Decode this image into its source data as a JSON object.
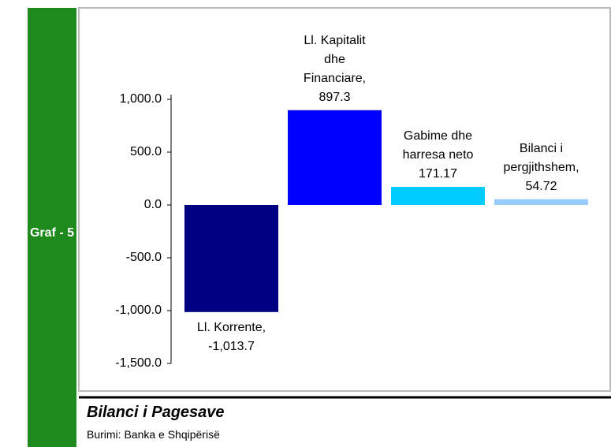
{
  "sidebar_label": "Graf - 5",
  "caption": "Bilanci i Pagesave",
  "source": "Burimi: Banka e Shqipërisë",
  "chart_data": {
    "type": "bar",
    "values": [
      -1013.7,
      897.3,
      171.17,
      54.72
    ],
    "value_labels": [
      "Ll. Korrente, -1,013.7",
      "Ll. Kapitalit dhe Financiare, 897.3",
      "Gabime dhe harresa neto 171.17",
      "Bilanci i pergjithshem, 54.72"
    ],
    "colors": [
      "#000080",
      "#0000ff",
      "#00ccff",
      "#99ccff"
    ],
    "ylim": [
      -1500,
      1000
    ],
    "yticks": [
      {
        "value": -1500,
        "label": "-1,500.0"
      },
      {
        "value": -1000,
        "label": "-1,000.0"
      },
      {
        "value": -500,
        "label": "-500.0"
      },
      {
        "value": 0,
        "label": "0.0"
      },
      {
        "value": 500,
        "label": "500.0"
      },
      {
        "value": 1000,
        "label": "1,000.0"
      }
    ],
    "grid": false
  }
}
